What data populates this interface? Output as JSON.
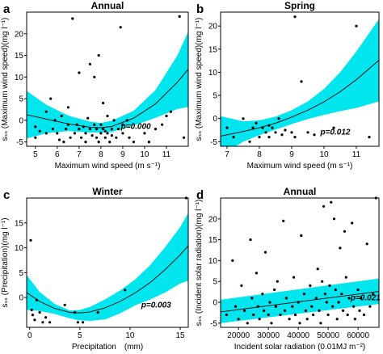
{
  "figure": {
    "colors": {
      "band": "#00e5ee",
      "fit": "#000000",
      "points": "#000000",
      "axes": "#000000"
    }
  },
  "chart_data": [
    {
      "id": "a",
      "letter": "a",
      "type": "scatter",
      "title": "Annual",
      "xlabel": "Maximum wind speed (m s⁻¹)",
      "ylabel": "sₛₛ (Maximum wind speed)(mg l⁻¹)",
      "xlim": [
        4.6,
        12.0
      ],
      "ylim": [
        -6,
        25
      ],
      "xticks": [
        5,
        6,
        7,
        8,
        9,
        10,
        11
      ],
      "yticks": [
        -5,
        0,
        5,
        10,
        15,
        20
      ],
      "annotation": "p=0.000",
      "annotation_pos": [
        9.6,
        -2
      ],
      "fit": {
        "x": [
          4.6,
          5.5,
          6.5,
          7.5,
          8.0,
          8.5,
          9.5,
          10.5,
          11.5,
          12.0
        ],
        "y": [
          1.3,
          0.3,
          -0.8,
          -1.6,
          -1.7,
          -1.4,
          0.5,
          3.8,
          8.8,
          11.8
        ],
        "upper": [
          6.8,
          3.6,
          1.1,
          -0.3,
          -0.6,
          -0.1,
          2.2,
          7.0,
          15.0,
          20.5
        ],
        "lower": [
          -4.2,
          -3.0,
          -2.5,
          -2.8,
          -2.8,
          -2.7,
          -1.2,
          0.6,
          2.6,
          3.1
        ]
      },
      "points": [
        [
          5.0,
          -1.5
        ],
        [
          5.0,
          -4
        ],
        [
          5.2,
          -2.5
        ],
        [
          5.5,
          2
        ],
        [
          5.5,
          -3
        ],
        [
          5.7,
          5
        ],
        [
          5.8,
          -2
        ],
        [
          5.9,
          0
        ],
        [
          6.0,
          -3
        ],
        [
          6.1,
          -4.5
        ],
        [
          6.2,
          1
        ],
        [
          6.3,
          -5
        ],
        [
          6.4,
          -2
        ],
        [
          6.5,
          -1
        ],
        [
          6.5,
          3
        ],
        [
          6.6,
          -4
        ],
        [
          6.7,
          23.5
        ],
        [
          6.8,
          -3
        ],
        [
          6.9,
          -1
        ],
        [
          7.0,
          11
        ],
        [
          7.0,
          -2
        ],
        [
          7.1,
          -4
        ],
        [
          7.2,
          -1.5
        ],
        [
          7.3,
          -3
        ],
        [
          7.3,
          -5
        ],
        [
          7.4,
          0.5
        ],
        [
          7.5,
          -2
        ],
        [
          7.5,
          13
        ],
        [
          7.6,
          -3.5
        ],
        [
          7.7,
          -1
        ],
        [
          7.7,
          10
        ],
        [
          7.8,
          -4
        ],
        [
          7.8,
          -2
        ],
        [
          7.9,
          15
        ],
        [
          7.9,
          -5
        ],
        [
          8.0,
          -1
        ],
        [
          8.0,
          -3
        ],
        [
          8.1,
          -2
        ],
        [
          8.1,
          4
        ],
        [
          8.2,
          -4
        ],
        [
          8.2,
          -2.5
        ],
        [
          8.3,
          -3
        ],
        [
          8.3,
          1
        ],
        [
          8.4,
          -5
        ],
        [
          8.5,
          -2
        ],
        [
          8.5,
          -3.5
        ],
        [
          8.6,
          0
        ],
        [
          8.7,
          -4
        ],
        [
          8.8,
          -2
        ],
        [
          8.9,
          21.5
        ],
        [
          9.0,
          -1
        ],
        [
          9.0,
          -3
        ],
        [
          9.2,
          0
        ],
        [
          9.3,
          -4
        ],
        [
          9.5,
          -5
        ],
        [
          10.0,
          -3
        ],
        [
          10.2,
          -5
        ],
        [
          10.5,
          -2
        ],
        [
          10.8,
          -1
        ],
        [
          11.0,
          1
        ],
        [
          11.2,
          2
        ],
        [
          11.6,
          24
        ],
        [
          11.8,
          -4
        ]
      ]
    },
    {
      "id": "b",
      "letter": "b",
      "type": "scatter",
      "title": "Spring",
      "xlabel": "Maximum wind speed (m s⁻¹)",
      "ylabel": "sₛₛ (Maximum wind speed)(mg l⁻¹)",
      "xlim": [
        6.8,
        11.7
      ],
      "ylim": [
        -6,
        23
      ],
      "xticks": [
        7,
        8,
        9,
        10,
        11
      ],
      "yticks": [
        -5,
        0,
        5,
        10,
        15,
        20
      ],
      "annotation": "p=0.012",
      "annotation_pos": [
        10.35,
        -3.5
      ],
      "fit": {
        "x": [
          6.8,
          7.5,
          8.0,
          8.5,
          9.0,
          9.5,
          10.0,
          10.5,
          11.0,
          11.7
        ],
        "y": [
          -3.8,
          -2.8,
          -2.0,
          -1.0,
          0.3,
          1.8,
          3.6,
          5.8,
          8.4,
          12.6
        ],
        "upper": [
          0.5,
          -0.6,
          -0.4,
          0.4,
          1.8,
          3.7,
          6.4,
          10.0,
          14.5,
          21.5
        ],
        "lower": [
          -8.0,
          -5.0,
          -3.6,
          -2.4,
          -1.2,
          -0.1,
          0.8,
          1.6,
          2.3,
          3.7
        ]
      },
      "points": [
        [
          7.0,
          -2
        ],
        [
          7.2,
          -4
        ],
        [
          7.5,
          0
        ],
        [
          7.7,
          -5
        ],
        [
          7.8,
          -2
        ],
        [
          7.9,
          -1
        ],
        [
          8.0,
          -4
        ],
        [
          8.1,
          -2
        ],
        [
          8.2,
          -3
        ],
        [
          8.3,
          -1.5
        ],
        [
          8.3,
          -4
        ],
        [
          8.4,
          -2
        ],
        [
          8.5,
          -3
        ],
        [
          8.6,
          0
        ],
        [
          8.7,
          -3.5
        ],
        [
          8.8,
          -2.5
        ],
        [
          9.0,
          -3
        ],
        [
          9.1,
          22
        ],
        [
          9.1,
          -4
        ],
        [
          9.3,
          8
        ],
        [
          9.5,
          -3
        ],
        [
          9.7,
          -3.5
        ],
        [
          10.3,
          -2
        ],
        [
          11.0,
          20
        ],
        [
          11.4,
          -4
        ]
      ]
    },
    {
      "id": "c",
      "letter": "c",
      "type": "scatter",
      "title": "Winter",
      "xlabel": "Precipitation　(mm)",
      "ylabel": "sₛₛ (Precipitation)(mg l⁻¹)",
      "xlim": [
        -0.3,
        15.8
      ],
      "ylim": [
        -6,
        20
      ],
      "xticks": [
        0,
        5,
        10,
        15
      ],
      "yticks": [
        0,
        5,
        10,
        15
      ],
      "annotation": "p=0.003",
      "annotation_pos": [
        12.6,
        -2
      ],
      "fit": {
        "x": [
          -0.3,
          1.0,
          2.5,
          4.0,
          5.0,
          6.0,
          7.5,
          9.0,
          10.5,
          12.0,
          13.5,
          15.0,
          15.8
        ],
        "y": [
          1.0,
          -0.8,
          -2.2,
          -3.0,
          -3.1,
          -2.9,
          -2.1,
          -0.8,
          0.9,
          3.0,
          5.6,
          8.6,
          10.4
        ],
        "upper": [
          4.5,
          1.1,
          -1.3,
          -2.6,
          -2.5,
          -1.9,
          -0.4,
          1.4,
          3.6,
          6.5,
          10.1,
          14.2,
          17.0
        ],
        "lower": [
          -2.5,
          -2.7,
          -3.3,
          -4.2,
          -4.6,
          -4.7,
          -4.4,
          -3.2,
          -1.6,
          -0.4,
          1.0,
          2.8,
          3.4
        ]
      },
      "points": [
        [
          0.1,
          11.5
        ],
        [
          0.2,
          -2.5
        ],
        [
          0.3,
          -3.5
        ],
        [
          0.5,
          -4.5
        ],
        [
          0.7,
          -0.5
        ],
        [
          1.0,
          -3
        ],
        [
          1.3,
          -5
        ],
        [
          1.6,
          -4
        ],
        [
          2.0,
          -5
        ],
        [
          3.5,
          -1.5
        ],
        [
          4.5,
          -3
        ],
        [
          4.8,
          -5
        ],
        [
          5.3,
          -5
        ],
        [
          6.8,
          -3
        ],
        [
          9.5,
          1.5
        ],
        [
          15.6,
          20
        ]
      ]
    },
    {
      "id": "d",
      "letter": "d",
      "type": "scatter",
      "title": "Annual",
      "xlabel": "Incident solar radiation (0.01MJ m⁻²)",
      "ylabel": "sₛₛ (Incident solar radiation)(mg l⁻¹)",
      "xlim": [
        14000,
        67000
      ],
      "ylim": [
        -6,
        25
      ],
      "xticks": [
        20000,
        30000,
        40000,
        50000,
        60000
      ],
      "yticks": [
        -5,
        0,
        5,
        10,
        15,
        20
      ],
      "annotation": "p=0.021",
      "annotation_pos": [
        62500,
        0.5
      ],
      "fit": {
        "x": [
          14000,
          67000
        ],
        "y": [
          -2.3,
          2.6
        ],
        "upper": [
          0.6,
          5.7
        ],
        "lower": [
          -5.0,
          -0.4
        ]
      },
      "points": [
        [
          16000,
          -3
        ],
        [
          18000,
          10
        ],
        [
          19000,
          -1
        ],
        [
          20000,
          -4
        ],
        [
          21000,
          4
        ],
        [
          22000,
          -2
        ],
        [
          23000,
          -5
        ],
        [
          24000,
          15
        ],
        [
          24500,
          1
        ],
        [
          25000,
          -3
        ],
        [
          26000,
          7
        ],
        [
          26500,
          -1
        ],
        [
          27000,
          -4
        ],
        [
          28000,
          2
        ],
        [
          28500,
          -2
        ],
        [
          29000,
          12
        ],
        [
          30000,
          -3
        ],
        [
          30500,
          0
        ],
        [
          31000,
          -5
        ],
        [
          32000,
          3
        ],
        [
          32500,
          -1
        ],
        [
          33000,
          5
        ],
        [
          34000,
          -3
        ],
        [
          35000,
          19.5
        ],
        [
          35500,
          -2
        ],
        [
          36000,
          1
        ],
        [
          37000,
          -4
        ],
        [
          38000,
          -1
        ],
        [
          38500,
          6
        ],
        [
          39000,
          -3
        ],
        [
          40000,
          0
        ],
        [
          40500,
          -5
        ],
        [
          41000,
          16
        ],
        [
          42000,
          2
        ],
        [
          42500,
          -2
        ],
        [
          43000,
          -4
        ],
        [
          44000,
          4
        ],
        [
          44500,
          -1
        ],
        [
          45000,
          -3
        ],
        [
          46000,
          1
        ],
        [
          46500,
          8
        ],
        [
          47000,
          -2
        ],
        [
          47500,
          -5
        ],
        [
          48000,
          5
        ],
        [
          48500,
          23
        ],
        [
          49000,
          2
        ],
        [
          49500,
          0
        ],
        [
          50000,
          -3
        ],
        [
          50500,
          4
        ],
        [
          51000,
          24
        ],
        [
          51500,
          -1
        ],
        [
          52000,
          20
        ],
        [
          52500,
          3
        ],
        [
          53000,
          -4
        ],
        [
          53500,
          0
        ],
        [
          54000,
          13
        ],
        [
          54500,
          2
        ],
        [
          55000,
          -2
        ],
        [
          55500,
          17
        ],
        [
          56000,
          6
        ],
        [
          56500,
          -3
        ],
        [
          57000,
          1
        ],
        [
          58000,
          19
        ],
        [
          58500,
          -1
        ],
        [
          59000,
          -4
        ],
        [
          60000,
          3
        ],
        [
          60500,
          -2
        ],
        [
          61000,
          1
        ],
        [
          62000,
          -3
        ],
        [
          63000,
          14
        ],
        [
          64000,
          -1
        ],
        [
          65000,
          2
        ],
        [
          66000,
          25
        ]
      ]
    }
  ]
}
